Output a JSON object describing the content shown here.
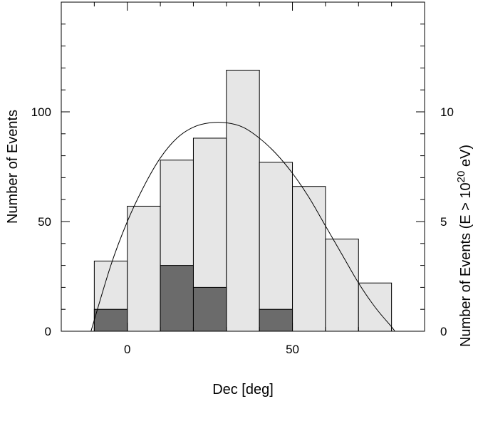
{
  "chart_data": {
    "type": "bar",
    "xlabel": "Dec [deg]",
    "ylabel": "Number of Events",
    "ylabel_right": {
      "pre": "Number of Events (E > 10",
      "sup": "20",
      "post": " eV)"
    },
    "xlim": [
      -20,
      90
    ],
    "ylim": [
      0,
      150
    ],
    "ylim_right": [
      0,
      15
    ],
    "x_ticks": [
      0,
      50
    ],
    "y_ticks": [
      0,
      50,
      100
    ],
    "y_ticks_right": [
      0,
      5,
      10
    ],
    "grid": false,
    "series": [
      {
        "style": "histogram-step",
        "fill": "#e6e6e6",
        "bins": [
          -10,
          0,
          10,
          20,
          30,
          40,
          50,
          60,
          70,
          80
        ],
        "values": [
          32,
          57,
          78,
          88,
          119,
          77,
          66,
          42,
          22
        ]
      },
      {
        "style": "histogram-filled",
        "axis": "right",
        "fill": "#6b6b6b",
        "bins": [
          -10,
          0,
          10,
          20,
          30,
          40,
          50,
          60,
          70,
          80
        ],
        "values": [
          1,
          0,
          3,
          2,
          0,
          1,
          0,
          0,
          0
        ]
      },
      {
        "style": "curve",
        "x": [
          -11,
          -5,
          0,
          5,
          10,
          15,
          20,
          25,
          30,
          35,
          40,
          45,
          50,
          55,
          60,
          65,
          70,
          75,
          80,
          81
        ],
        "values": [
          0,
          30,
          50,
          66,
          79,
          88,
          93,
          95,
          95,
          93,
          88,
          81,
          72,
          61,
          48,
          35,
          22,
          11,
          2,
          0
        ]
      }
    ]
  }
}
